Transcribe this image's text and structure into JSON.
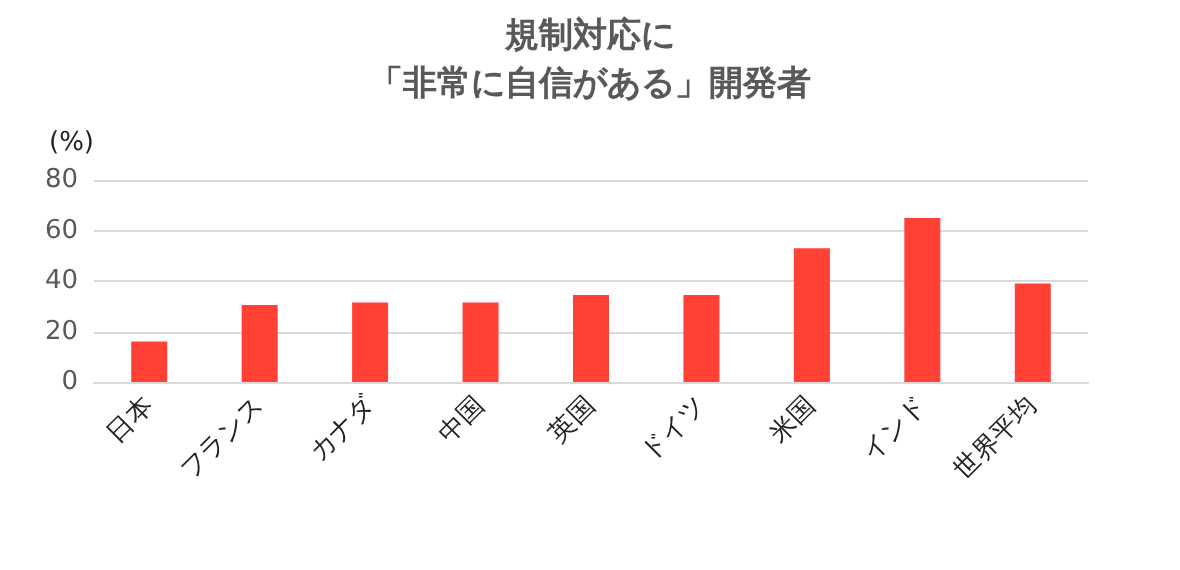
{
  "chart_data": {
    "type": "bar",
    "title": "規制対応に",
    "subtitle": "「非常に自信がある」開発者",
    "ylabel": "(%)",
    "categories": [
      "日本",
      "フランス",
      "カナダ",
      "中国",
      "英国",
      "ドイツ",
      "米国",
      "インド",
      "世界平均"
    ],
    "values": [
      16,
      30.5,
      31.5,
      31.5,
      34.5,
      34.5,
      53,
      65,
      39
    ],
    "color": "#ff4136",
    "ylim": [
      0,
      80
    ],
    "yticks": [
      0,
      20,
      40,
      60,
      80
    ],
    "grid": "y"
  }
}
